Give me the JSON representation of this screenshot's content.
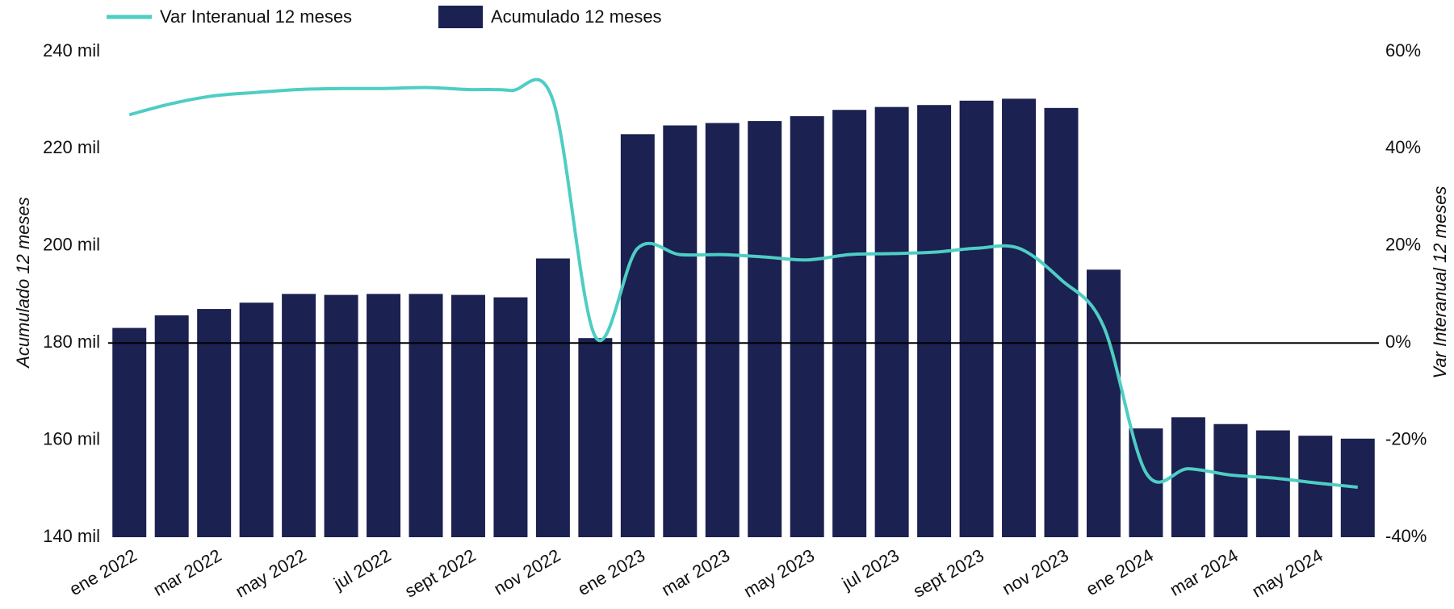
{
  "chart_data": {
    "type": "bar_line",
    "categories": [
      "ene 2022",
      null,
      "mar 2022",
      null,
      "may 2022",
      null,
      "jul 2022",
      null,
      "sept 2022",
      null,
      "nov 2022",
      null,
      "ene 2023",
      null,
      "mar 2023",
      null,
      "may 2023",
      null,
      "jul 2023",
      null,
      "sept 2023",
      null,
      "nov 2023",
      null,
      "ene 2024",
      null,
      "mar 2024",
      null,
      "may 2024",
      null
    ],
    "series": [
      {
        "name": "Acumulado 12 meses",
        "type": "bar",
        "color": "#1b2150",
        "values": [
          183100,
          185700,
          187000,
          188300,
          190100,
          189900,
          190100,
          190100,
          189900,
          189400,
          197400,
          181000,
          223000,
          224800,
          225300,
          225700,
          226700,
          228000,
          228600,
          229000,
          229900,
          230300,
          228400,
          195100,
          162400,
          164700,
          163300,
          162000,
          160900,
          160300
        ]
      },
      {
        "name": "Var Interanual 12 meses",
        "type": "line",
        "axis": "y2",
        "color": "#4ecdc4",
        "values": [
          47.0,
          49.3,
          50.9,
          51.6,
          52.2,
          52.4,
          52.4,
          52.6,
          52.2,
          52.0,
          50.0,
          1.3,
          19.5,
          18.2,
          18.2,
          17.7,
          17.1,
          18.2,
          18.4,
          18.7,
          19.5,
          19.5,
          13.0,
          3.4,
          -26.7,
          -25.9,
          -27.2,
          -27.8,
          -28.8,
          -29.7
        ]
      }
    ],
    "ylabel": "Acumulado 12 meses",
    "y2label": "Var Interanual 12 meses",
    "ylim": [
      140000,
      240000
    ],
    "yticks": [
      {
        "value": 140000,
        "label": "140 mil"
      },
      {
        "value": 160000,
        "label": "160 mil"
      },
      {
        "value": 180000,
        "label": "180 mil"
      },
      {
        "value": 200000,
        "label": "200 mil"
      },
      {
        "value": 220000,
        "label": "220 mil"
      },
      {
        "value": 240000,
        "label": "240 mil"
      }
    ],
    "y2lim": [
      -40,
      60
    ],
    "y2ticks": [
      {
        "value": -40,
        "label": "-40%"
      },
      {
        "value": -20,
        "label": "-20%"
      },
      {
        "value": 0,
        "label": "0%"
      },
      {
        "value": 20,
        "label": "20%"
      },
      {
        "value": 40,
        "label": "40%"
      },
      {
        "value": 60,
        "label": "60%"
      }
    ]
  }
}
